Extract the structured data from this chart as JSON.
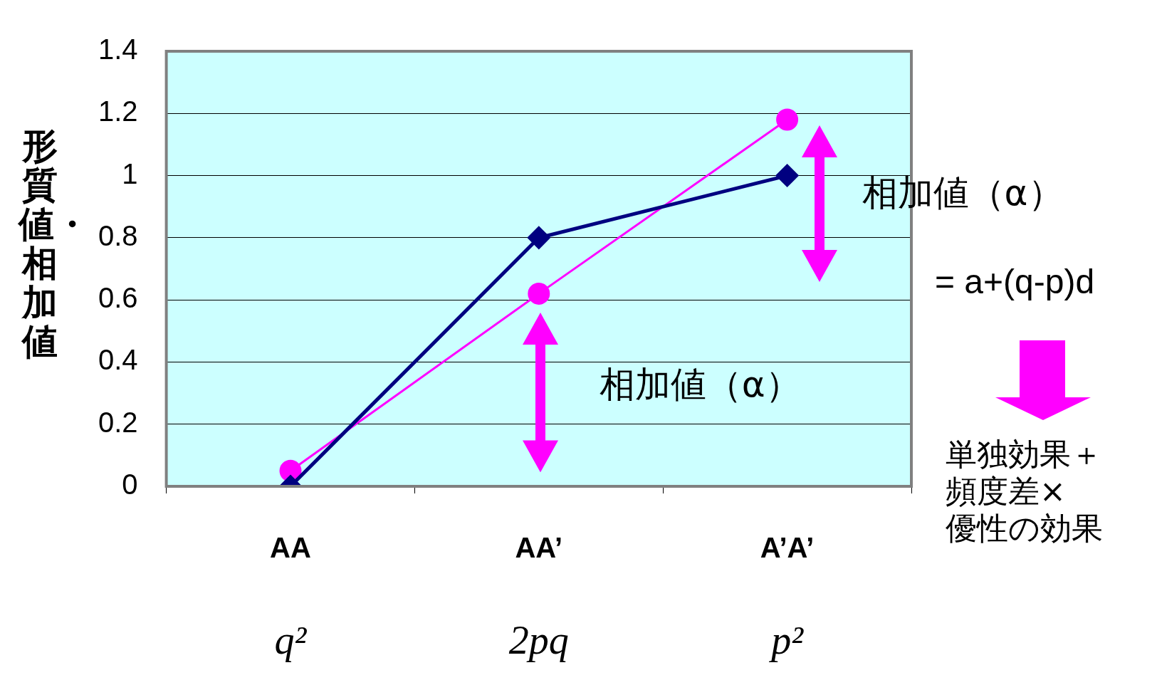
{
  "chart_data": {
    "type": "line",
    "ylabel": "形質値・相加値",
    "categories": [
      "AA\nq²",
      "AA’\n2pq",
      "A’A’\np²"
    ],
    "series": [
      {
        "color": "#000080",
        "values": [
          0,
          0.8,
          1.0
        ],
        "marker": "diamond"
      },
      {
        "color": "#ff00ff",
        "values": [
          0.05,
          0.62,
          1.18
        ],
        "marker": "circle"
      }
    ],
    "ylim": [
      0,
      1.4
    ],
    "yticks": [
      0,
      0.2,
      0.4,
      0.6,
      0.8,
      1,
      1.2,
      1.4
    ],
    "grid": "y",
    "legend": false,
    "annotations": [
      "相加値（α）",
      "相加値（α）",
      "= a+(q-p)d",
      "単独効果＋",
      "頻度差×",
      "優性の効果"
    ]
  }
}
